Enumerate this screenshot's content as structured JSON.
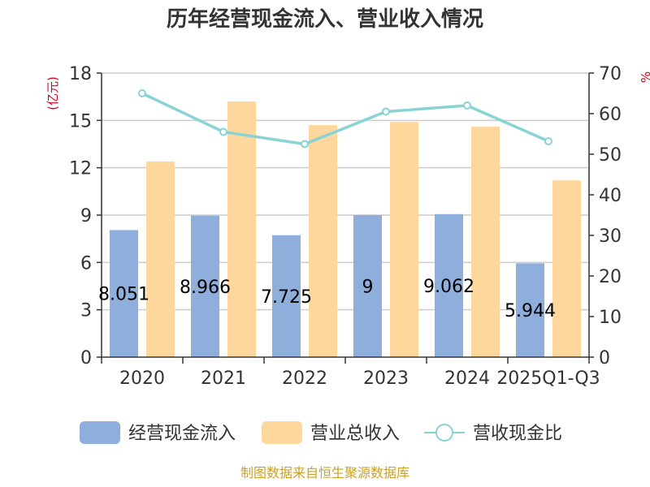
{
  "title": "历年经营现金流入、营业收入情况",
  "source": "制图数据来自恒生聚源数据库",
  "chart_data": {
    "type": "bar",
    "title": "历年经营现金流入、营业收入情况",
    "categories": [
      "2020",
      "2021",
      "2022",
      "2023",
      "2024",
      "2025Q1-Q3"
    ],
    "y_left": {
      "unit": "(亿元)",
      "min": 0,
      "max": 18,
      "ticks": [
        "0",
        "3",
        "6",
        "9",
        "12",
        "15",
        "18"
      ]
    },
    "y_right": {
      "unit": "%",
      "min": 0,
      "max": 70,
      "ticks": [
        "0",
        "10",
        "20",
        "30",
        "40",
        "50",
        "60",
        "70"
      ]
    },
    "grid": true,
    "legend_position": "bottom",
    "series": [
      {
        "name": "经营现金流入",
        "type": "bar",
        "axis": "left",
        "color": "#8eaedc",
        "values": [
          8.051,
          8.966,
          7.725,
          9,
          9.062,
          5.944
        ],
        "labels": [
          "8.051",
          "8.966",
          "7.725",
          "9",
          "9.062",
          "5.944"
        ]
      },
      {
        "name": "营业总收入",
        "type": "bar",
        "axis": "left",
        "color": "#fed79c",
        "values": [
          12.4,
          16.2,
          14.7,
          14.9,
          14.6,
          11.2
        ]
      },
      {
        "name": "营收现金比",
        "type": "line",
        "axis": "right",
        "color": "#89d3d6",
        "values": [
          65,
          55.5,
          52.5,
          60.5,
          62,
          53.2
        ]
      }
    ]
  }
}
